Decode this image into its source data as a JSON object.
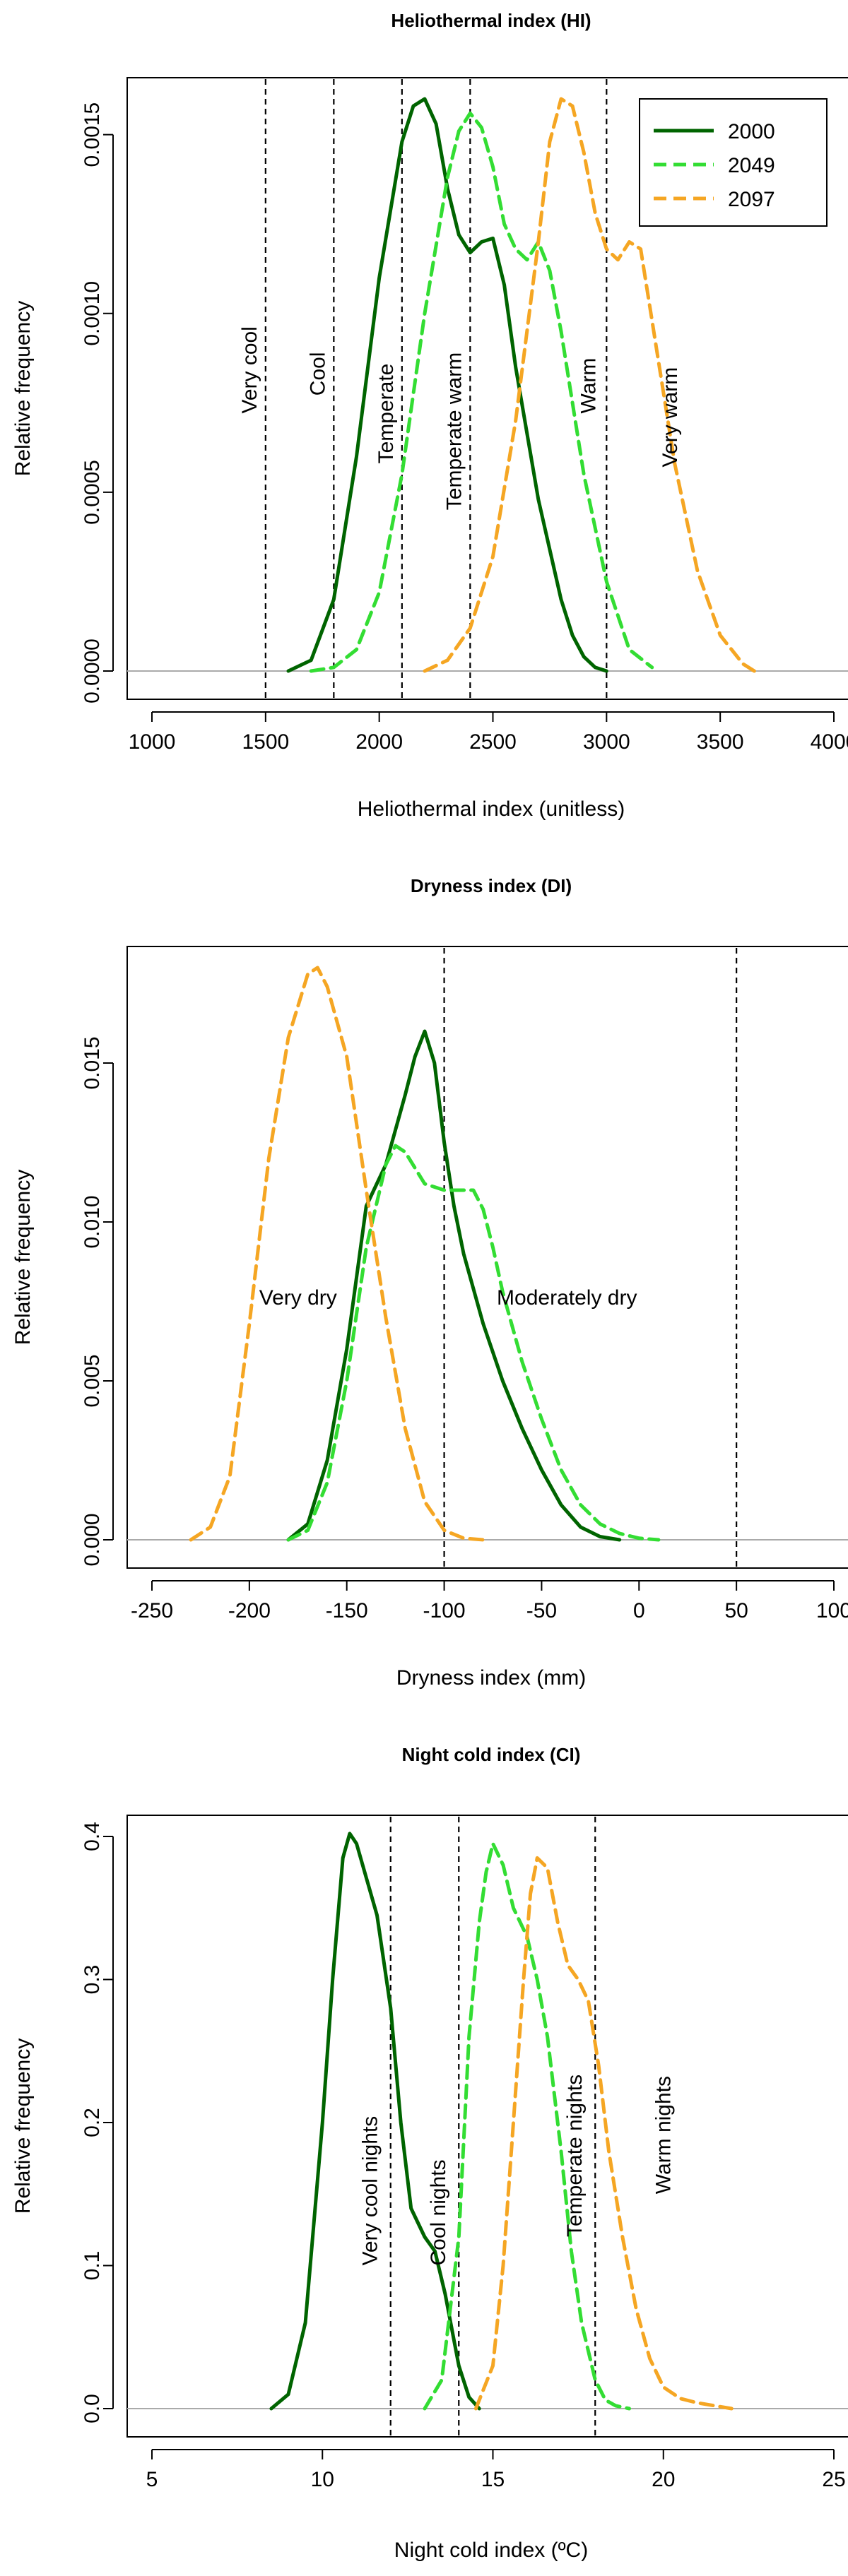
{
  "colors": {
    "2000": "#006400",
    "2049": "#33dd33",
    "2097": "#f5a623",
    "baseline": "#aaaaaa"
  },
  "chart_data": [
    {
      "type": "line",
      "title": "Heliothermal index (HI)",
      "xlabel": "Heliothermal index (unitless)",
      "ylabel": "Relative frequency",
      "xlim": [
        1000,
        4000
      ],
      "ylim": [
        0,
        0.0016
      ],
      "xticks": [
        1000,
        1500,
        2000,
        2500,
        3000,
        3500,
        4000
      ],
      "yticks": [
        0.0,
        0.0005,
        0.001,
        0.0015
      ],
      "ytick_labels": [
        "0.0000",
        "0.0005",
        "0.0010",
        "0.0015"
      ],
      "vlines": [
        1500,
        1800,
        2100,
        2400,
        3000
      ],
      "zone_labels": [
        {
          "text": "Very cool",
          "x": 1460,
          "y": 0.00072
        },
        {
          "text": "Cool",
          "x": 1760,
          "y": 0.00077
        },
        {
          "text": "Temperate",
          "x": 2060,
          "y": 0.00058
        },
        {
          "text": "Temperate warm",
          "x": 2360,
          "y": 0.00045
        },
        {
          "text": "Warm",
          "x": 2950,
          "y": 0.00072
        },
        {
          "text": "Very warm",
          "x": 3310,
          "y": 0.00057
        }
      ],
      "legend": {
        "position": "top-right",
        "entries": [
          "2000",
          "2049",
          "2097"
        ]
      },
      "series": [
        {
          "name": "2000",
          "style": "solid",
          "x": [
            1600,
            1700,
            1800,
            1900,
            2000,
            2100,
            2150,
            2200,
            2250,
            2300,
            2350,
            2400,
            2450,
            2500,
            2550,
            2600,
            2700,
            2800,
            2850,
            2900,
            2950,
            3000
          ],
          "y": [
            0,
            3e-05,
            0.0002,
            0.0006,
            0.0011,
            0.00148,
            0.00158,
            0.0016,
            0.00153,
            0.00135,
            0.00122,
            0.00117,
            0.0012,
            0.00121,
            0.00108,
            0.00085,
            0.00048,
            0.0002,
            0.0001,
            4e-05,
            1e-05,
            0
          ]
        },
        {
          "name": "2049",
          "style": "dashed",
          "x": [
            1700,
            1800,
            1900,
            2000,
            2100,
            2200,
            2300,
            2350,
            2400,
            2450,
            2500,
            2550,
            2600,
            2650,
            2700,
            2750,
            2800,
            2900,
            3000,
            3100,
            3200
          ],
          "y": [
            0,
            1e-05,
            6e-05,
            0.00022,
            0.00055,
            0.001,
            0.00138,
            0.00151,
            0.00156,
            0.00152,
            0.00141,
            0.00125,
            0.00118,
            0.00115,
            0.0012,
            0.00112,
            0.00095,
            0.00055,
            0.00025,
            6e-05,
            1e-05
          ]
        },
        {
          "name": "2097",
          "style": "dashed",
          "x": [
            2200,
            2300,
            2400,
            2500,
            2600,
            2700,
            2750,
            2800,
            2850,
            2900,
            2950,
            3000,
            3050,
            3100,
            3150,
            3200,
            3300,
            3400,
            3500,
            3600,
            3650
          ],
          "y": [
            0,
            3e-05,
            0.00012,
            0.00032,
            0.0007,
            0.0012,
            0.00148,
            0.0016,
            0.00158,
            0.00145,
            0.00128,
            0.00118,
            0.00115,
            0.0012,
            0.00118,
            0.00098,
            0.00058,
            0.00028,
            0.0001,
            2e-05,
            0
          ]
        }
      ]
    },
    {
      "type": "line",
      "title": "Dryness index (DI)",
      "xlabel": "Dryness index (mm)",
      "ylabel": "Relative frequency",
      "xlim": [
        -250,
        100
      ],
      "ylim": [
        0,
        0.018
      ],
      "xticks": [
        -250,
        -200,
        -150,
        -100,
        -50,
        0,
        50,
        100
      ],
      "yticks": [
        0.0,
        0.005,
        0.01,
        0.015
      ],
      "ytick_labels": [
        "0.000",
        "0.005",
        "0.010",
        "0.015"
      ],
      "vlines": [
        -100,
        50
      ],
      "zone_labels": [
        {
          "text": "Very dry",
          "x": -175,
          "y": 0.0074
        },
        {
          "text": "Moderately dry",
          "x": -37,
          "y": 0.0074
        }
      ],
      "series": [
        {
          "name": "2000",
          "style": "solid",
          "x": [
            -180,
            -170,
            -160,
            -150,
            -140,
            -130,
            -120,
            -115,
            -110,
            -105,
            -100,
            -95,
            -90,
            -80,
            -70,
            -60,
            -50,
            -40,
            -30,
            -20,
            -10
          ],
          "y": [
            0,
            0.0005,
            0.0025,
            0.006,
            0.0105,
            0.0118,
            0.014,
            0.0152,
            0.016,
            0.015,
            0.0125,
            0.0105,
            0.009,
            0.0068,
            0.005,
            0.0035,
            0.0022,
            0.0011,
            0.0004,
            0.0001,
            0
          ]
        },
        {
          "name": "2049",
          "style": "dashed",
          "x": [
            -180,
            -170,
            -160,
            -150,
            -140,
            -130,
            -125,
            -120,
            -110,
            -100,
            -90,
            -85,
            -80,
            -75,
            -70,
            -60,
            -50,
            -40,
            -30,
            -20,
            -10,
            0,
            10
          ],
          "y": [
            0,
            0.0003,
            0.0018,
            0.005,
            0.0092,
            0.0118,
            0.0124,
            0.0122,
            0.0112,
            0.011,
            0.011,
            0.011,
            0.0104,
            0.0092,
            0.0078,
            0.0056,
            0.0038,
            0.0022,
            0.0011,
            0.0005,
            0.0002,
            5e-05,
            0
          ]
        },
        {
          "name": "2097",
          "style": "dashed",
          "x": [
            -230,
            -220,
            -210,
            -200,
            -190,
            -180,
            -170,
            -165,
            -160,
            -150,
            -140,
            -130,
            -120,
            -110,
            -100,
            -90,
            -80
          ],
          "y": [
            0,
            0.0004,
            0.002,
            0.0068,
            0.012,
            0.0158,
            0.0178,
            0.018,
            0.0174,
            0.0152,
            0.011,
            0.007,
            0.0035,
            0.0012,
            0.0003,
            5e-05,
            0
          ]
        }
      ]
    },
    {
      "type": "line",
      "title": "Night cold index (CI)",
      "xlabel": "Night cold index (ºC)",
      "ylabel": "Relative frequency",
      "xlim": [
        5,
        25
      ],
      "ylim": [
        0,
        0.4
      ],
      "xticks": [
        5,
        10,
        15,
        20,
        25
      ],
      "yticks": [
        0.0,
        0.1,
        0.2,
        0.3,
        0.4
      ],
      "ytick_labels": [
        "0.0",
        "0.1",
        "0.2",
        "0.3",
        "0.4"
      ],
      "vlines": [
        12,
        14,
        18
      ],
      "zone_labels": [
        {
          "text": "Very cool nights",
          "x": 11.6,
          "y": 0.1
        },
        {
          "text": "Cool nights",
          "x": 13.6,
          "y": 0.1
        },
        {
          "text": "Temperate nights",
          "x": 17.6,
          "y": 0.12
        },
        {
          "text": "Warm nights",
          "x": 20.2,
          "y": 0.15
        }
      ],
      "series": [
        {
          "name": "2000",
          "style": "solid",
          "x": [
            8.5,
            9,
            9.5,
            10,
            10.3,
            10.6,
            10.8,
            11,
            11.3,
            11.6,
            12,
            12.3,
            12.6,
            13,
            13.3,
            13.6,
            14,
            14.3,
            14.6
          ],
          "y": [
            0,
            0.01,
            0.06,
            0.2,
            0.3,
            0.385,
            0.402,
            0.395,
            0.37,
            0.345,
            0.28,
            0.2,
            0.14,
            0.12,
            0.11,
            0.08,
            0.03,
            0.008,
            0
          ]
        },
        {
          "name": "2049",
          "style": "dashed",
          "x": [
            13,
            13.5,
            14,
            14.3,
            14.6,
            14.8,
            15,
            15.3,
            15.6,
            16,
            16.3,
            16.6,
            17,
            17.3,
            17.6,
            18,
            18.3,
            18.6,
            19
          ],
          "y": [
            0,
            0.02,
            0.12,
            0.26,
            0.34,
            0.375,
            0.395,
            0.38,
            0.35,
            0.33,
            0.3,
            0.26,
            0.18,
            0.11,
            0.06,
            0.02,
            0.006,
            0.002,
            0
          ]
        },
        {
          "name": "2097",
          "style": "dashed",
          "x": [
            14.5,
            15,
            15.3,
            15.6,
            15.9,
            16.1,
            16.3,
            16.6,
            16.9,
            17.2,
            17.5,
            17.8,
            18.1,
            18.4,
            18.8,
            19.2,
            19.6,
            20,
            20.5,
            21,
            21.5,
            22
          ],
          "y": [
            0,
            0.03,
            0.1,
            0.2,
            0.3,
            0.36,
            0.385,
            0.378,
            0.34,
            0.31,
            0.3,
            0.285,
            0.24,
            0.18,
            0.12,
            0.07,
            0.035,
            0.015,
            0.007,
            0.004,
            0.002,
            0
          ]
        }
      ]
    }
  ]
}
